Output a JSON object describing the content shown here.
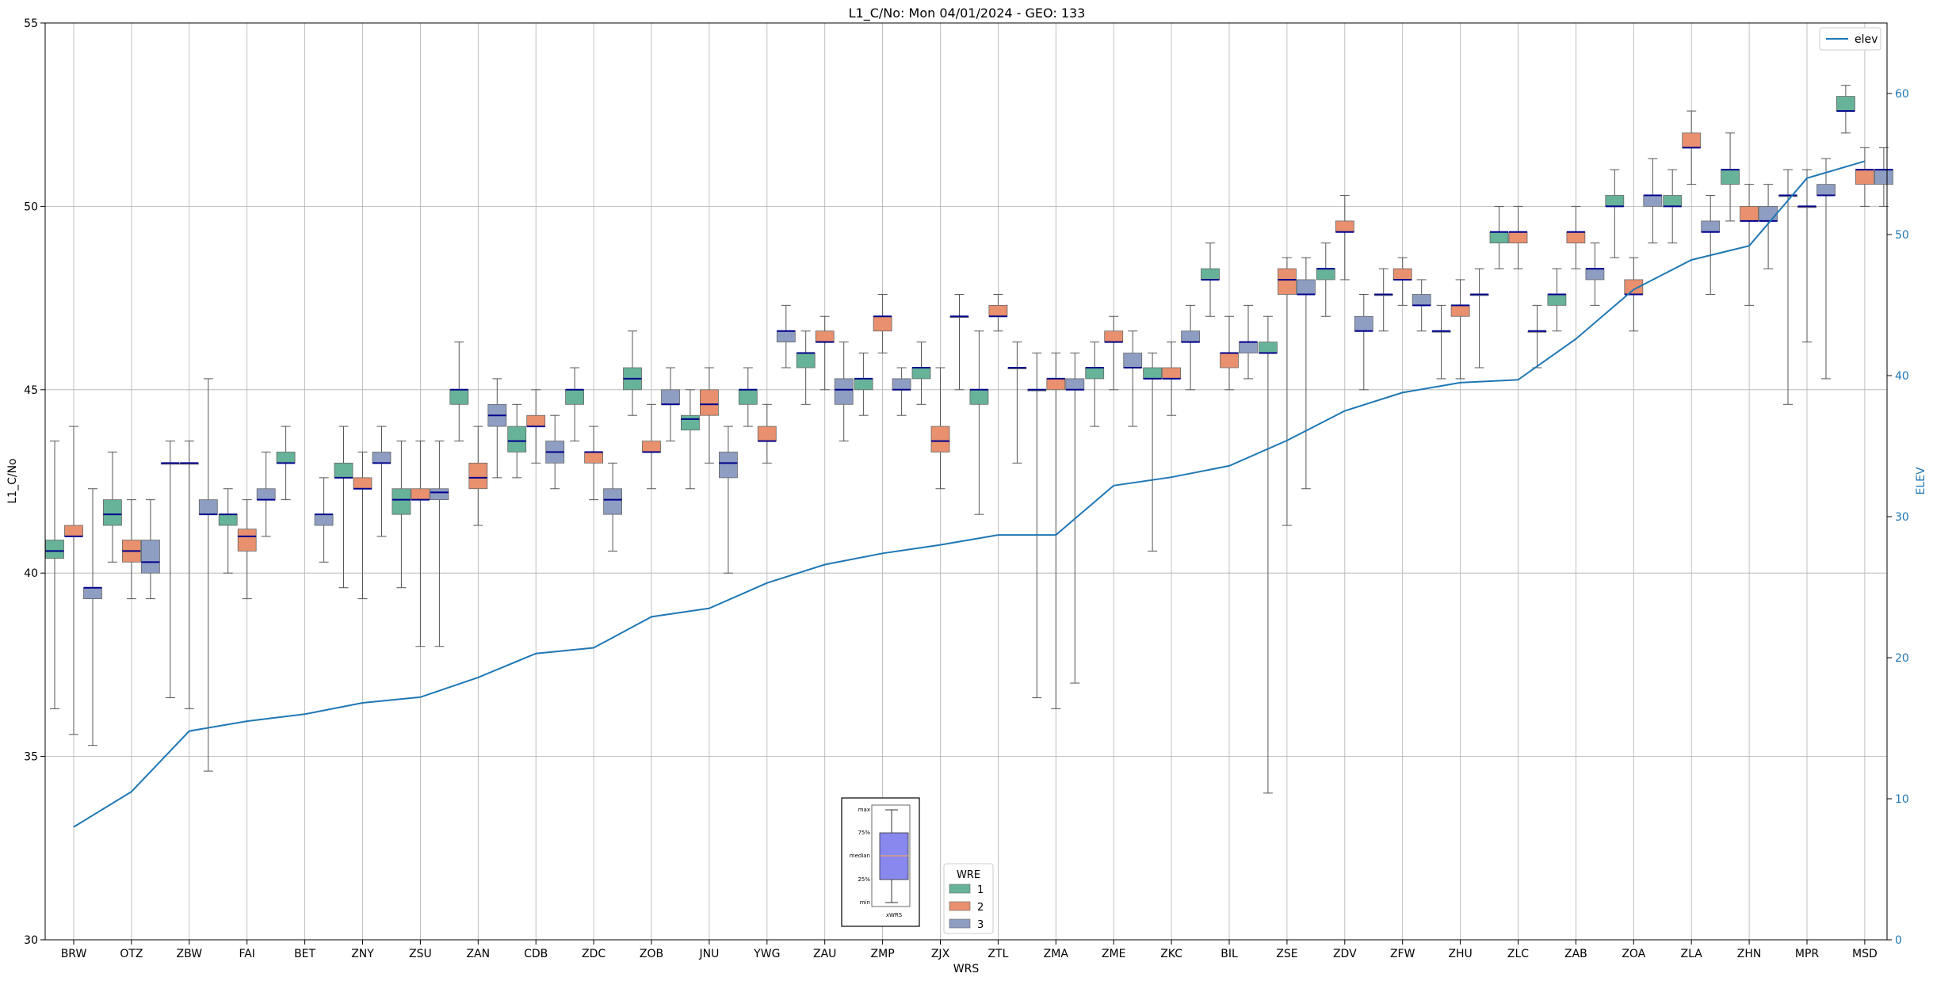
{
  "chart_data": {
    "type": "box",
    "title": "L1_C/No: Mon 04/01/2024 - GEO: 133",
    "xlabel": "WRS",
    "ylabel": "L1_C/No",
    "y2label": "ELEV",
    "ylim": [
      30,
      55
    ],
    "y2lim": [
      0,
      65
    ],
    "yticks": [
      30,
      35,
      40,
      45,
      50,
      55
    ],
    "y2ticks": [
      0,
      10,
      20,
      30,
      40,
      50,
      60
    ],
    "grid": true,
    "categories": [
      "BRW",
      "OTZ",
      "ZBW",
      "FAI",
      "BET",
      "ZNY",
      "ZSU",
      "ZAN",
      "CDB",
      "ZDC",
      "ZOB",
      "JNU",
      "YWG",
      "ZAU",
      "ZMP",
      "ZJX",
      "ZTL",
      "ZMA",
      "ZME",
      "ZKC",
      "BIL",
      "ZSE",
      "ZDV",
      "ZFW",
      "ZHU",
      "ZLC",
      "ZAB",
      "ZOA",
      "ZLA",
      "ZHN",
      "MPR",
      "MSD"
    ],
    "wre_colors": {
      "1": "#66b399",
      "2": "#e9906e",
      "3": "#8e9dc2"
    },
    "median_color": "#00008b",
    "elev_color": "#1f77b4",
    "boxes": [
      {
        "wrs": "BRW",
        "wre": "1",
        "min": 36.3,
        "q1": 40.4,
        "median": 40.6,
        "q3": 40.9,
        "max": 43.6
      },
      {
        "wrs": "BRW",
        "wre": "2",
        "min": 35.6,
        "q1": 41.0,
        "median": 41.0,
        "q3": 41.3,
        "max": 44.0
      },
      {
        "wrs": "BRW",
        "wre": "3",
        "min": 35.3,
        "q1": 39.3,
        "median": 39.6,
        "q3": 39.6,
        "max": 42.3
      },
      {
        "wrs": "OTZ",
        "wre": "1",
        "min": 40.3,
        "q1": 41.3,
        "median": 41.6,
        "q3": 42.0,
        "max": 43.3
      },
      {
        "wrs": "OTZ",
        "wre": "2",
        "min": 39.3,
        "q1": 40.3,
        "median": 40.6,
        "q3": 40.9,
        "max": 42.0
      },
      {
        "wrs": "OTZ",
        "wre": "3",
        "min": 39.3,
        "q1": 40.0,
        "median": 40.3,
        "q3": 40.9,
        "max": 42.0
      },
      {
        "wrs": "ZBW",
        "wre": "1",
        "min": 36.6,
        "q1": 43.0,
        "median": 43.0,
        "q3": 43.0,
        "max": 43.6
      },
      {
        "wrs": "ZBW",
        "wre": "2",
        "min": 36.3,
        "q1": 43.0,
        "median": 43.0,
        "q3": 43.0,
        "max": 43.6
      },
      {
        "wrs": "ZBW",
        "wre": "3",
        "min": 34.6,
        "q1": 41.6,
        "median": 41.6,
        "q3": 42.0,
        "max": 45.3
      },
      {
        "wrs": "FAI",
        "wre": "1",
        "min": 40.0,
        "q1": 41.3,
        "median": 41.6,
        "q3": 41.6,
        "max": 42.3
      },
      {
        "wrs": "FAI",
        "wre": "2",
        "min": 39.3,
        "q1": 40.6,
        "median": 41.0,
        "q3": 41.2,
        "max": 42.0
      },
      {
        "wrs": "FAI",
        "wre": "3",
        "min": 41.0,
        "q1": 42.0,
        "median": 42.0,
        "q3": 42.3,
        "max": 43.3
      },
      {
        "wrs": "BET",
        "wre": "1",
        "min": 42.0,
        "q1": 43.0,
        "median": 43.0,
        "q3": 43.3,
        "max": 44.0
      },
      {
        "wrs": "BET",
        "wre": "3",
        "min": 40.3,
        "q1": 41.3,
        "median": 41.6,
        "q3": 41.6,
        "max": 42.6
      },
      {
        "wrs": "ZNY",
        "wre": "1",
        "min": 39.6,
        "q1": 42.6,
        "median": 42.6,
        "q3": 43.0,
        "max": 44.0
      },
      {
        "wrs": "ZNY",
        "wre": "2",
        "min": 39.3,
        "q1": 42.3,
        "median": 42.3,
        "q3": 42.6,
        "max": 43.3
      },
      {
        "wrs": "ZNY",
        "wre": "3",
        "min": 41.0,
        "q1": 43.0,
        "median": 43.0,
        "q3": 43.3,
        "max": 44.0
      },
      {
        "wrs": "ZSU",
        "wre": "1",
        "min": 39.6,
        "q1": 41.6,
        "median": 42.0,
        "q3": 42.3,
        "max": 43.6
      },
      {
        "wrs": "ZSU",
        "wre": "2",
        "min": 38.0,
        "q1": 42.0,
        "median": 42.0,
        "q3": 42.3,
        "max": 43.6
      },
      {
        "wrs": "ZSU",
        "wre": "3",
        "min": 38.0,
        "q1": 42.0,
        "median": 42.2,
        "q3": 42.3,
        "max": 43.6
      },
      {
        "wrs": "ZAN",
        "wre": "1",
        "min": 43.6,
        "q1": 44.6,
        "median": 45.0,
        "q3": 45.0,
        "max": 46.3
      },
      {
        "wrs": "ZAN",
        "wre": "2",
        "min": 41.3,
        "q1": 42.3,
        "median": 42.6,
        "q3": 43.0,
        "max": 44.0
      },
      {
        "wrs": "ZAN",
        "wre": "3",
        "min": 42.6,
        "q1": 44.0,
        "median": 44.3,
        "q3": 44.6,
        "max": 45.3
      },
      {
        "wrs": "CDB",
        "wre": "1",
        "min": 42.6,
        "q1": 43.3,
        "median": 43.6,
        "q3": 44.0,
        "max": 44.6
      },
      {
        "wrs": "CDB",
        "wre": "2",
        "min": 43.0,
        "q1": 44.0,
        "median": 44.0,
        "q3": 44.3,
        "max": 45.0
      },
      {
        "wrs": "CDB",
        "wre": "3",
        "min": 42.3,
        "q1": 43.0,
        "median": 43.3,
        "q3": 43.6,
        "max": 44.3
      },
      {
        "wrs": "ZDC",
        "wre": "1",
        "min": 43.6,
        "q1": 44.6,
        "median": 45.0,
        "q3": 45.0,
        "max": 45.6
      },
      {
        "wrs": "ZDC",
        "wre": "2",
        "min": 42.0,
        "q1": 43.0,
        "median": 43.3,
        "q3": 43.3,
        "max": 44.0
      },
      {
        "wrs": "ZDC",
        "wre": "3",
        "min": 40.6,
        "q1": 41.6,
        "median": 42.0,
        "q3": 42.3,
        "max": 43.0
      },
      {
        "wrs": "ZOB",
        "wre": "1",
        "min": 44.3,
        "q1": 45.0,
        "median": 45.3,
        "q3": 45.6,
        "max": 46.6
      },
      {
        "wrs": "ZOB",
        "wre": "2",
        "min": 42.3,
        "q1": 43.3,
        "median": 43.3,
        "q3": 43.6,
        "max": 44.6
      },
      {
        "wrs": "ZOB",
        "wre": "3",
        "min": 43.6,
        "q1": 44.6,
        "median": 44.6,
        "q3": 45.0,
        "max": 45.6
      },
      {
        "wrs": "JNU",
        "wre": "1",
        "min": 42.3,
        "q1": 43.9,
        "median": 44.2,
        "q3": 44.3,
        "max": 45.0
      },
      {
        "wrs": "JNU",
        "wre": "2",
        "min": 43.0,
        "q1": 44.3,
        "median": 44.6,
        "q3": 45.0,
        "max": 45.6
      },
      {
        "wrs": "JNU",
        "wre": "3",
        "min": 40.0,
        "q1": 42.6,
        "median": 43.0,
        "q3": 43.3,
        "max": 44.0
      },
      {
        "wrs": "YWG",
        "wre": "1",
        "min": 44.0,
        "q1": 44.6,
        "median": 45.0,
        "q3": 45.0,
        "max": 45.6
      },
      {
        "wrs": "YWG",
        "wre": "2",
        "min": 43.0,
        "q1": 43.6,
        "median": 43.6,
        "q3": 44.0,
        "max": 44.6
      },
      {
        "wrs": "YWG",
        "wre": "3",
        "min": 45.6,
        "q1": 46.3,
        "median": 46.6,
        "q3": 46.6,
        "max": 47.3
      },
      {
        "wrs": "ZAU",
        "wre": "1",
        "min": 44.6,
        "q1": 45.6,
        "median": 46.0,
        "q3": 46.0,
        "max": 46.6
      },
      {
        "wrs": "ZAU",
        "wre": "2",
        "min": 45.0,
        "q1": 46.3,
        "median": 46.3,
        "q3": 46.6,
        "max": 47.0
      },
      {
        "wrs": "ZAU",
        "wre": "3",
        "min": 43.6,
        "q1": 44.6,
        "median": 45.0,
        "q3": 45.3,
        "max": 46.3
      },
      {
        "wrs": "ZMP",
        "wre": "1",
        "min": 44.3,
        "q1": 45.0,
        "median": 45.3,
        "q3": 45.3,
        "max": 46.0
      },
      {
        "wrs": "ZMP",
        "wre": "2",
        "min": 46.0,
        "q1": 46.6,
        "median": 47.0,
        "q3": 47.0,
        "max": 47.6
      },
      {
        "wrs": "ZMP",
        "wre": "3",
        "min": 44.3,
        "q1": 45.0,
        "median": 45.0,
        "q3": 45.3,
        "max": 45.6
      },
      {
        "wrs": "ZJX",
        "wre": "1",
        "min": 44.6,
        "q1": 45.3,
        "median": 45.6,
        "q3": 45.6,
        "max": 46.3
      },
      {
        "wrs": "ZJX",
        "wre": "2",
        "min": 42.3,
        "q1": 43.3,
        "median": 43.6,
        "q3": 44.0,
        "max": 45.6
      },
      {
        "wrs": "ZJX",
        "wre": "3",
        "min": 45.0,
        "q1": 47.0,
        "median": 47.0,
        "q3": 47.0,
        "max": 47.6
      },
      {
        "wrs": "ZTL",
        "wre": "1",
        "min": 41.6,
        "q1": 44.6,
        "median": 45.0,
        "q3": 45.0,
        "max": 46.6
      },
      {
        "wrs": "ZTL",
        "wre": "2",
        "min": 46.6,
        "q1": 47.0,
        "median": 47.0,
        "q3": 47.3,
        "max": 47.6
      },
      {
        "wrs": "ZTL",
        "wre": "3",
        "min": 43.0,
        "q1": 45.6,
        "median": 45.6,
        "q3": 45.6,
        "max": 46.3
      },
      {
        "wrs": "ZMA",
        "wre": "1",
        "min": 36.6,
        "q1": 45.0,
        "median": 45.0,
        "q3": 45.0,
        "max": 46.0
      },
      {
        "wrs": "ZMA",
        "wre": "2",
        "min": 36.3,
        "q1": 45.0,
        "median": 45.3,
        "q3": 45.3,
        "max": 46.0
      },
      {
        "wrs": "ZMA",
        "wre": "3",
        "min": 37.0,
        "q1": 45.0,
        "median": 45.0,
        "q3": 45.3,
        "max": 46.0
      },
      {
        "wrs": "ZME",
        "wre": "1",
        "min": 44.0,
        "q1": 45.3,
        "median": 45.6,
        "q3": 45.6,
        "max": 46.3
      },
      {
        "wrs": "ZME",
        "wre": "2",
        "min": 45.0,
        "q1": 46.3,
        "median": 46.3,
        "q3": 46.6,
        "max": 47.0
      },
      {
        "wrs": "ZME",
        "wre": "3",
        "min": 44.0,
        "q1": 45.6,
        "median": 45.6,
        "q3": 46.0,
        "max": 46.6
      },
      {
        "wrs": "ZKC",
        "wre": "1",
        "min": 40.6,
        "q1": 45.3,
        "median": 45.3,
        "q3": 45.6,
        "max": 46.0
      },
      {
        "wrs": "ZKC",
        "wre": "2",
        "min": 44.3,
        "q1": 45.3,
        "median": 45.3,
        "q3": 45.6,
        "max": 46.3
      },
      {
        "wrs": "ZKC",
        "wre": "3",
        "min": 45.0,
        "q1": 46.3,
        "median": 46.3,
        "q3": 46.6,
        "max": 47.3
      },
      {
        "wrs": "BIL",
        "wre": "1",
        "min": 47.0,
        "q1": 48.0,
        "median": 48.0,
        "q3": 48.3,
        "max": 49.0
      },
      {
        "wrs": "BIL",
        "wre": "2",
        "min": 45.0,
        "q1": 45.6,
        "median": 46.0,
        "q3": 46.0,
        "max": 47.0
      },
      {
        "wrs": "BIL",
        "wre": "3",
        "min": 45.3,
        "q1": 46.0,
        "median": 46.3,
        "q3": 46.3,
        "max": 47.3
      },
      {
        "wrs": "ZSE",
        "wre": "1",
        "min": 34.0,
        "q1": 46.0,
        "median": 46.0,
        "q3": 46.3,
        "max": 47.0
      },
      {
        "wrs": "ZSE",
        "wre": "2",
        "min": 41.3,
        "q1": 47.6,
        "median": 48.0,
        "q3": 48.3,
        "max": 48.6
      },
      {
        "wrs": "ZSE",
        "wre": "3",
        "min": 42.3,
        "q1": 47.6,
        "median": 47.6,
        "q3": 48.0,
        "max": 48.6
      },
      {
        "wrs": "ZDV",
        "wre": "1",
        "min": 47.0,
        "q1": 48.0,
        "median": 48.3,
        "q3": 48.3,
        "max": 49.0
      },
      {
        "wrs": "ZDV",
        "wre": "2",
        "min": 48.0,
        "q1": 49.3,
        "median": 49.3,
        "q3": 49.6,
        "max": 50.3
      },
      {
        "wrs": "ZDV",
        "wre": "3",
        "min": 45.0,
        "q1": 46.6,
        "median": 46.6,
        "q3": 47.0,
        "max": 47.6
      },
      {
        "wrs": "ZFW",
        "wre": "1",
        "min": 46.6,
        "q1": 47.6,
        "median": 47.6,
        "q3": 47.6,
        "max": 48.3
      },
      {
        "wrs": "ZFW",
        "wre": "2",
        "min": 47.3,
        "q1": 48.0,
        "median": 48.0,
        "q3": 48.3,
        "max": 48.6
      },
      {
        "wrs": "ZFW",
        "wre": "3",
        "min": 46.6,
        "q1": 47.3,
        "median": 47.3,
        "q3": 47.6,
        "max": 48.0
      },
      {
        "wrs": "ZHU",
        "wre": "1",
        "min": 45.3,
        "q1": 46.6,
        "median": 46.6,
        "q3": 46.6,
        "max": 47.3
      },
      {
        "wrs": "ZHU",
        "wre": "2",
        "min": 45.3,
        "q1": 47.0,
        "median": 47.3,
        "q3": 47.3,
        "max": 48.0
      },
      {
        "wrs": "ZHU",
        "wre": "3",
        "min": 45.6,
        "q1": 47.6,
        "median": 47.6,
        "q3": 47.6,
        "max": 48.3
      },
      {
        "wrs": "ZLC",
        "wre": "1",
        "min": 48.3,
        "q1": 49.0,
        "median": 49.3,
        "q3": 49.3,
        "max": 50.0
      },
      {
        "wrs": "ZLC",
        "wre": "2",
        "min": 48.3,
        "q1": 49.0,
        "median": 49.3,
        "q3": 49.3,
        "max": 50.0
      },
      {
        "wrs": "ZLC",
        "wre": "3",
        "min": 45.6,
        "q1": 46.6,
        "median": 46.6,
        "q3": 46.6,
        "max": 47.3
      },
      {
        "wrs": "ZAB",
        "wre": "1",
        "min": 46.6,
        "q1": 47.3,
        "median": 47.6,
        "q3": 47.6,
        "max": 48.3
      },
      {
        "wrs": "ZAB",
        "wre": "2",
        "min": 48.3,
        "q1": 49.0,
        "median": 49.3,
        "q3": 49.3,
        "max": 50.0
      },
      {
        "wrs": "ZAB",
        "wre": "3",
        "min": 47.3,
        "q1": 48.0,
        "median": 48.3,
        "q3": 48.3,
        "max": 49.0
      },
      {
        "wrs": "ZOA",
        "wre": "1",
        "min": 48.6,
        "q1": 50.0,
        "median": 50.0,
        "q3": 50.3,
        "max": 51.0
      },
      {
        "wrs": "ZOA",
        "wre": "2",
        "min": 46.6,
        "q1": 47.6,
        "median": 47.6,
        "q3": 48.0,
        "max": 48.6
      },
      {
        "wrs": "ZOA",
        "wre": "3",
        "min": 49.0,
        "q1": 50.0,
        "median": 50.3,
        "q3": 50.3,
        "max": 51.3
      },
      {
        "wrs": "ZLA",
        "wre": "1",
        "min": 49.0,
        "q1": 50.0,
        "median": 50.0,
        "q3": 50.3,
        "max": 51.0
      },
      {
        "wrs": "ZLA",
        "wre": "2",
        "min": 50.6,
        "q1": 51.6,
        "median": 51.6,
        "q3": 52.0,
        "max": 52.6
      },
      {
        "wrs": "ZLA",
        "wre": "3",
        "min": 47.6,
        "q1": 49.3,
        "median": 49.3,
        "q3": 49.6,
        "max": 50.3
      },
      {
        "wrs": "ZHN",
        "wre": "1",
        "min": 49.6,
        "q1": 50.6,
        "median": 51.0,
        "q3": 51.0,
        "max": 52.0
      },
      {
        "wrs": "ZHN",
        "wre": "2",
        "min": 47.3,
        "q1": 49.6,
        "median": 49.6,
        "q3": 50.0,
        "max": 50.6
      },
      {
        "wrs": "ZHN",
        "wre": "3",
        "min": 48.3,
        "q1": 49.6,
        "median": 49.6,
        "q3": 50.0,
        "max": 50.6
      },
      {
        "wrs": "MPR",
        "wre": "1",
        "min": 44.6,
        "q1": 50.3,
        "median": 50.3,
        "q3": 50.3,
        "max": 51.0
      },
      {
        "wrs": "MPR",
        "wre": "2",
        "min": 46.3,
        "q1": 50.0,
        "median": 50.0,
        "q3": 50.0,
        "max": 51.0
      },
      {
        "wrs": "MPR",
        "wre": "3",
        "min": 45.3,
        "q1": 50.3,
        "median": 50.3,
        "q3": 50.6,
        "max": 51.3
      },
      {
        "wrs": "MSD",
        "wre": "1",
        "min": 52.0,
        "q1": 52.6,
        "median": 52.6,
        "q3": 53.0,
        "max": 53.3
      },
      {
        "wrs": "MSD",
        "wre": "2",
        "min": 50.0,
        "q1": 50.6,
        "median": 51.0,
        "q3": 51.0,
        "max": 51.6
      },
      {
        "wrs": "MSD",
        "wre": "3",
        "min": 50.0,
        "q1": 50.6,
        "median": 51.0,
        "q3": 51.0,
        "max": 51.6
      }
    ],
    "elev_series": {
      "name": "elev",
      "values": [
        8.0,
        10.5,
        14.8,
        15.5,
        16.0,
        16.8,
        17.2,
        18.6,
        20.3,
        20.7,
        22.9,
        23.5,
        25.3,
        26.6,
        27.4,
        28.0,
        28.7,
        28.7,
        32.2,
        32.8,
        33.6,
        35.4,
        37.5,
        38.8,
        39.5,
        39.7,
        42.6,
        46.1,
        48.2,
        49.2,
        54.0,
        55.2
      ]
    },
    "legend_elev": {
      "label": "elev",
      "position": "top-right"
    },
    "legend_wre": {
      "title": "WRE",
      "entries": [
        "1",
        "2",
        "3"
      ],
      "position": "lower-center"
    },
    "key_box": {
      "labels": [
        "max",
        "75%",
        "median",
        "25%",
        "min"
      ],
      "xlabel": "xWRS"
    }
  }
}
